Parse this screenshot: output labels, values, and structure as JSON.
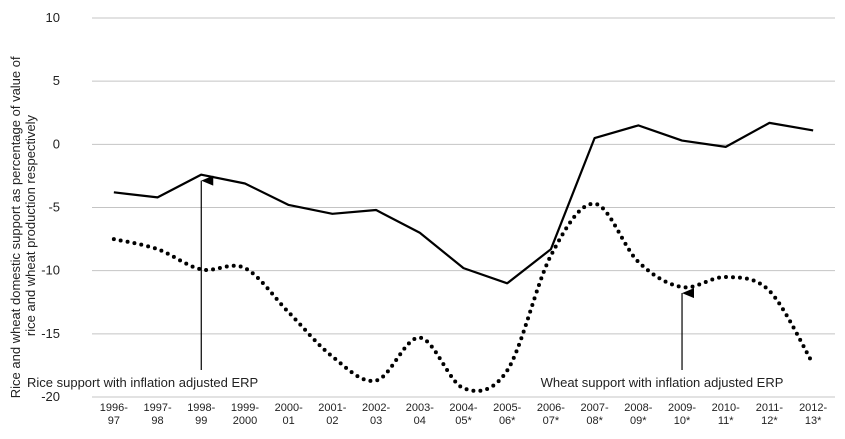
{
  "chart_data": {
    "type": "line",
    "title": "",
    "xlabel": "",
    "ylabel": "Rice and wheat domestic support as percentage of value of rice and wheat production respectively",
    "ylim": [
      -20,
      10
    ],
    "yticks": [
      10,
      5,
      0,
      -5,
      -10,
      -15,
      -20
    ],
    "grid": "horizontal",
    "categories": [
      [
        "1996-",
        "97"
      ],
      [
        "1997-",
        "98"
      ],
      [
        "1998-",
        "99"
      ],
      [
        "1999-",
        "2000"
      ],
      [
        "2000-",
        "01"
      ],
      [
        "2001-",
        "02"
      ],
      [
        "2002-",
        "03"
      ],
      [
        "2003-",
        "04"
      ],
      [
        "2004-",
        "05*"
      ],
      [
        "2005-",
        "06*"
      ],
      [
        "2006-",
        "07*"
      ],
      [
        "2007-",
        "08*"
      ],
      [
        "2008-",
        "09*"
      ],
      [
        "2009-",
        "10*"
      ],
      [
        "2010-",
        "11*"
      ],
      [
        "2011-",
        "12*"
      ],
      [
        "2012-",
        "13*"
      ]
    ],
    "series": [
      {
        "name": "Rice support with inflation adjusted ERP",
        "style": "solid",
        "color": "#000000",
        "values": [
          -3.8,
          -4.2,
          -2.4,
          -3.1,
          -4.8,
          -5.5,
          -5.2,
          -7.0,
          -9.8,
          -11.0,
          -8.3,
          0.5,
          1.5,
          0.3,
          -0.2,
          1.7,
          1.1
        ]
      },
      {
        "name": "Wheat support with inflation adjusted ERP",
        "style": "dotted",
        "color": "#000000",
        "values": [
          -7.5,
          -8.3,
          -9.9,
          -9.8,
          -13.3,
          -16.8,
          -18.7,
          -15.3,
          -19.3,
          -17.9,
          -8.8,
          -4.7,
          -9.3,
          -11.3,
          -10.5,
          -11.6,
          -17.4
        ]
      }
    ]
  }
}
